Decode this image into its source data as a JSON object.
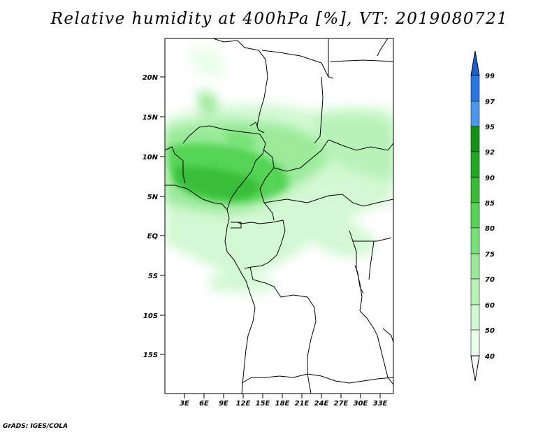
{
  "title": "Relative humidity at 400hPa [%], VT: 2019080721",
  "credit": "GrADS: IGES/COLA",
  "lat_ticks": [
    "20N",
    "15N",
    "10N",
    "5N",
    "EQ",
    "5S",
    "10S",
    "15S"
  ],
  "lon_ticks": [
    "3E",
    "6E",
    "9E",
    "12E",
    "15E",
    "18E",
    "21E",
    "24E",
    "27E",
    "30E",
    "33E"
  ],
  "colorbar": {
    "levels": [
      "99",
      "97",
      "95",
      "92",
      "90",
      "85",
      "80",
      "75",
      "70",
      "60",
      "50",
      "40"
    ],
    "colors": [
      "#1f5fd6",
      "#2b78e4",
      "#4a98ee",
      "#129412",
      "#23a823",
      "#37be37",
      "#55d455",
      "#78e278",
      "#9aea9a",
      "#b8f2b8",
      "#d3f8d3",
      "#eafdea",
      "#ffffff"
    ]
  }
}
